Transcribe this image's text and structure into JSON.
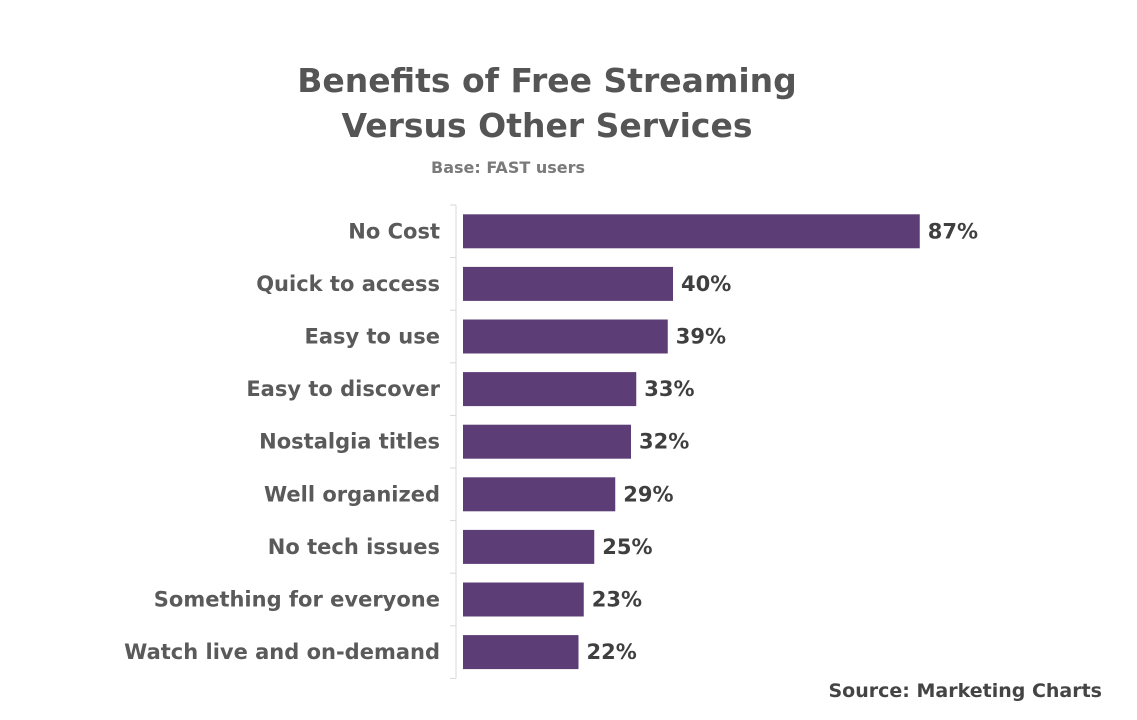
{
  "chart_data": {
    "type": "bar",
    "orientation": "horizontal",
    "title": "Benefits of Free Streaming Versus Other Services",
    "title_lines": [
      "Benefits of Free Streaming",
      "Versus Other Services"
    ],
    "subtitle": "Base: FAST users",
    "categories": [
      "No Cost",
      "Quick to access",
      "Easy to use",
      "Easy to discover",
      "Nostalgia titles",
      "Well organized",
      "No tech issues",
      "Something for everyone",
      "Watch live and on-demand"
    ],
    "values": [
      87,
      40,
      39,
      33,
      32,
      29,
      25,
      23,
      22
    ],
    "value_labels": [
      "87%",
      "40%",
      "39%",
      "33%",
      "32%",
      "29%",
      "25%",
      "23%",
      "22%"
    ],
    "xlim": [
      0,
      100
    ],
    "grid": false,
    "legend": "none",
    "bar_color": "#5c3d75",
    "source": "Source: Marketing Charts"
  }
}
